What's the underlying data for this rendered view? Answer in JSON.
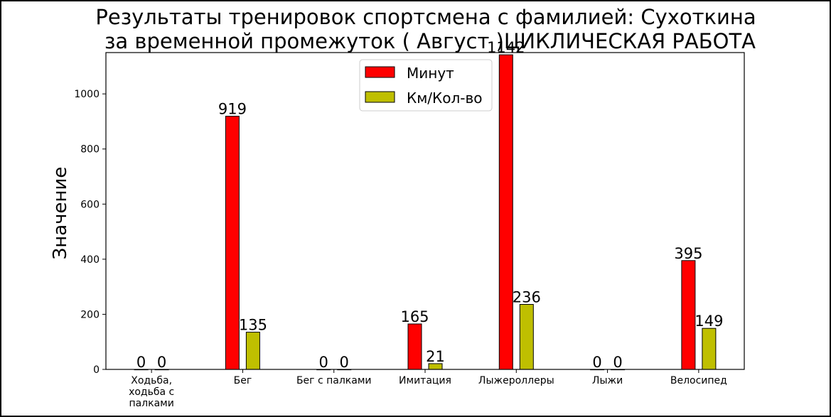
{
  "chart_data": {
    "type": "bar",
    "title_line1": "Результаты тренировок спортсмена с фамилией: Сухоткина",
    "title_line2": "за временной промежуток ( Август )ЦИКЛИЧЕСКАЯ РАБОТА",
    "xlabel": "",
    "ylabel": "Значение",
    "ylim": [
      0,
      1150
    ],
    "yticks": [
      0,
      200,
      400,
      600,
      800,
      1000
    ],
    "categories": [
      [
        "Ходьба,",
        "ходьба с",
        "палками"
      ],
      [
        "Бег"
      ],
      [
        "Бег с палками"
      ],
      [
        "Имитация"
      ],
      [
        "Лыжероллеры"
      ],
      [
        "Лыжи"
      ],
      [
        "Велосипед"
      ]
    ],
    "series": [
      {
        "name": "Минут",
        "color": "#ff0000",
        "values": [
          0,
          919,
          0,
          165,
          1142,
          0,
          395
        ]
      },
      {
        "name": "Км/Кол-во",
        "color": "#bfbf00",
        "values": [
          0,
          135,
          0,
          21,
          236,
          0,
          149
        ]
      }
    ],
    "grid": false,
    "legend_position": "upper-center",
    "bar_labels": true
  }
}
